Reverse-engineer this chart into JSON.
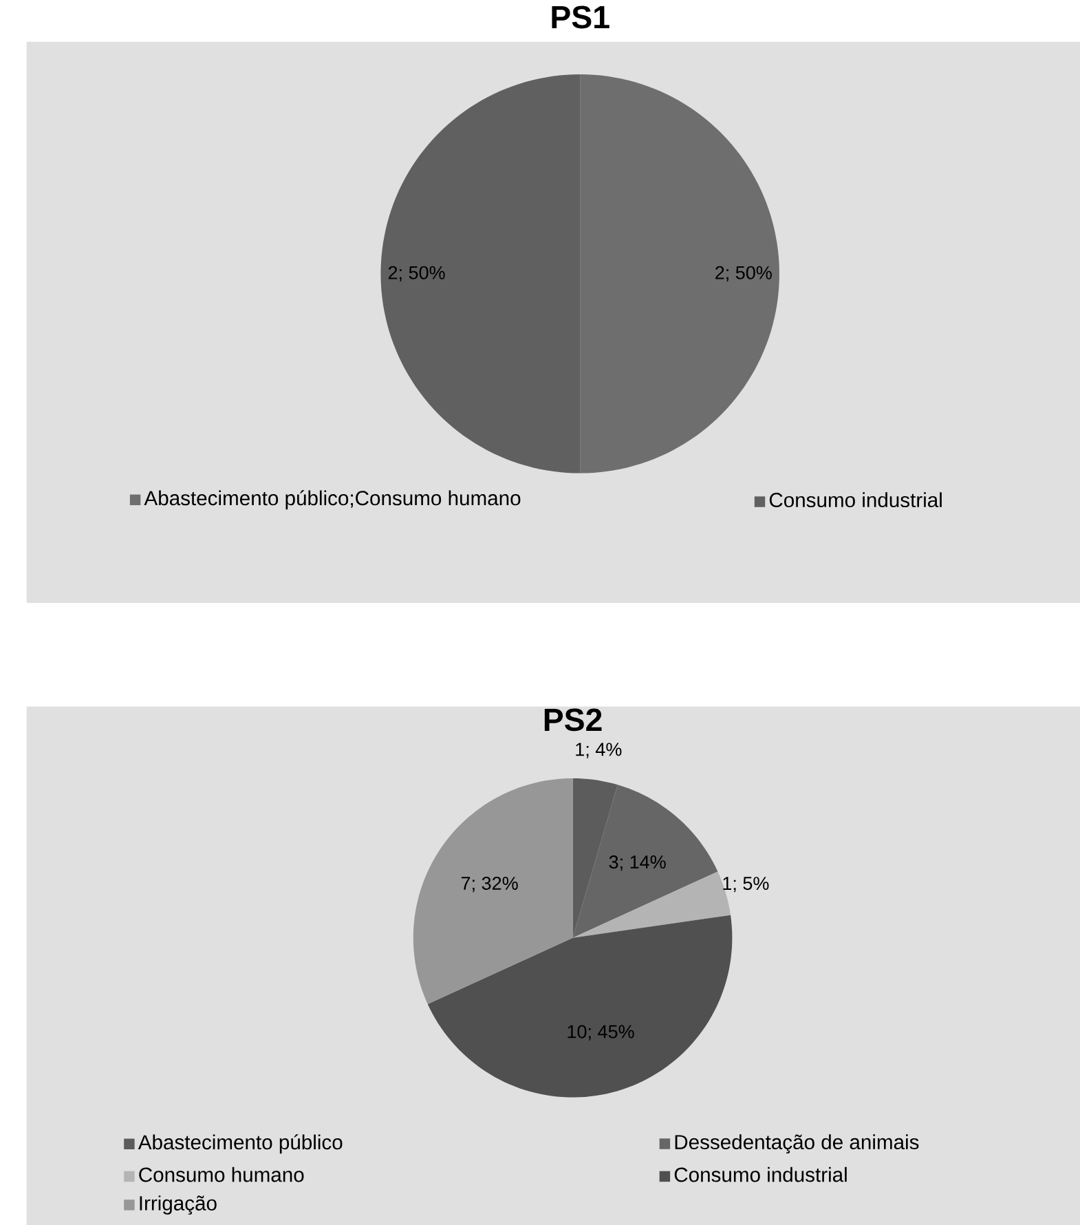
{
  "chart_data": [
    {
      "type": "pie",
      "title": "**PS1**",
      "categories": [
        "Abastecimento público;Consumo humano",
        "Consumo industrial"
      ],
      "values": [
        2,
        2
      ],
      "value_labels": [
        "2; 50%",
        "2; 50%"
      ],
      "colors": [
        "#6e6e6e",
        "#606060"
      ],
      "legend": "bottom"
    },
    {
      "type": "pie",
      "title": "**PS2**",
      "categories": [
        "Abastecimento público",
        "Dessedentação de animais",
        "Consumo humano",
        "Consumo industrial",
        "Irrigação"
      ],
      "values": [
        1,
        3,
        1,
        10,
        7
      ],
      "value_labels": [
        "1; 4%",
        "3; 14%",
        "1; 5%",
        "10; 45%",
        "7; 32%"
      ],
      "colors": [
        "#5c5c5c",
        "#666666",
        "#b4b4b4",
        "#505050",
        "#979797"
      ],
      "legend": "bottom"
    }
  ]
}
